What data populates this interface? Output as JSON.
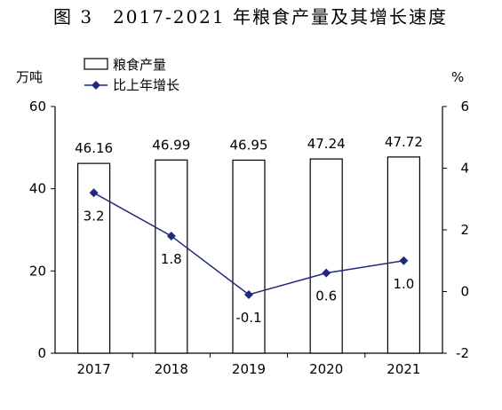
{
  "title": "图 3　2017-2021 年粮食产量及其增长速度",
  "left_unit": "万吨",
  "right_unit": "%",
  "legend": {
    "bar_label": "粮食产量",
    "line_label": "比上年增长"
  },
  "colors": {
    "bar_fill": "#ffffff",
    "bar_stroke": "#000000",
    "line": "#1f2a7a",
    "marker": "#1f2a7a",
    "axis": "#000000"
  },
  "chart_data": {
    "type": "bar",
    "categories": [
      "2017",
      "2018",
      "2019",
      "2020",
      "2021"
    ],
    "series": [
      {
        "name": "粮食产量",
        "type": "bar",
        "axis": "left",
        "values": [
          46.16,
          46.99,
          46.95,
          47.24,
          47.72
        ],
        "labels": [
          "46.16",
          "46.99",
          "46.95",
          "47.24",
          "47.72"
        ]
      },
      {
        "name": "比上年增长",
        "type": "line",
        "axis": "right",
        "values": [
          3.2,
          1.8,
          -0.1,
          0.6,
          1.0
        ],
        "labels": [
          "3.2",
          "1.8",
          "-0.1",
          "0.6",
          "1.0"
        ]
      }
    ],
    "left_axis": {
      "ylim": [
        0,
        60
      ],
      "ticks": [
        "0",
        "20",
        "40",
        "60"
      ]
    },
    "right_axis": {
      "ylim": [
        -2,
        6
      ],
      "ticks": [
        "-2",
        "0",
        "2",
        "4",
        "6"
      ]
    },
    "grid": false,
    "legend_position": "top-left"
  }
}
